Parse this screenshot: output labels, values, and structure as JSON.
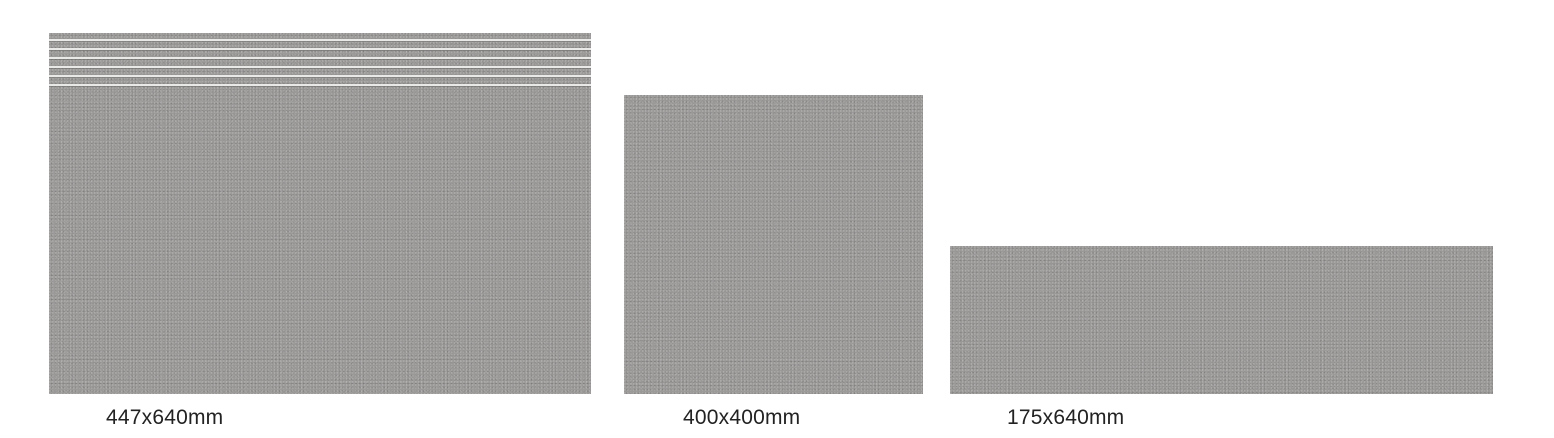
{
  "tiles": [
    {
      "id": "step-tile",
      "size_label": "447x640mm",
      "color": "#9b9a99",
      "grooves": 6
    },
    {
      "id": "square-tile",
      "size_label": "400x400mm",
      "color": "#9b9a99"
    },
    {
      "id": "strip-tile",
      "size_label": "175x640mm",
      "color": "#9b9a99"
    }
  ]
}
